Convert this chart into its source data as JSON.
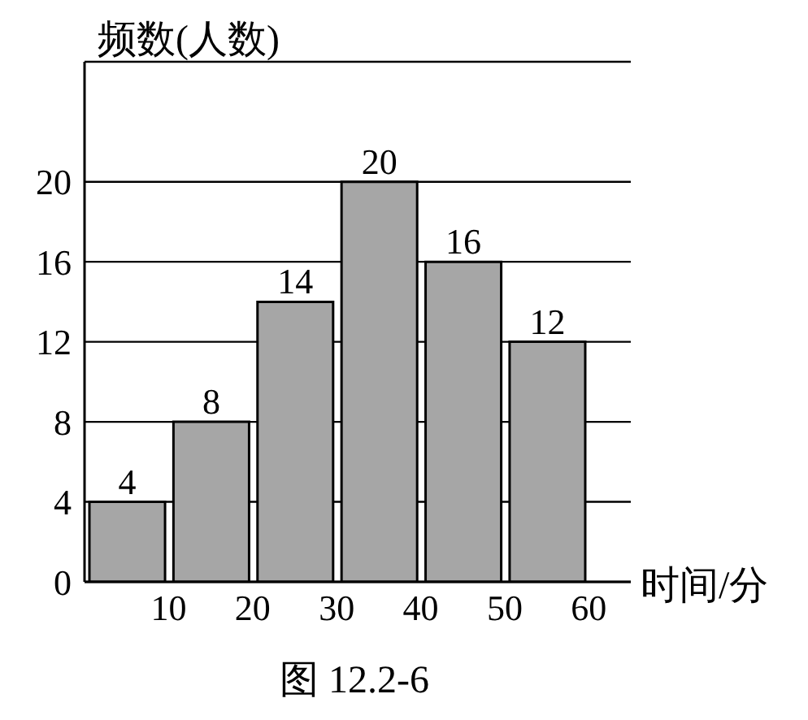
{
  "chart_data": {
    "type": "histogram",
    "ylabel": "频数(人数)",
    "xlabel": "时间/分",
    "annotations": [
      "图 12.2-6"
    ],
    "bins": [
      0,
      10,
      20,
      30,
      40,
      50,
      60
    ],
    "values": [
      4,
      8,
      14,
      20,
      16,
      12
    ],
    "color": "#a6a6a6",
    "xlim": [
      0,
      65
    ],
    "xticks": [
      10,
      20,
      30,
      40,
      50,
      60
    ],
    "ylim": [
      0,
      26
    ],
    "yticks": [
      0,
      4,
      8,
      12,
      16,
      20
    ],
    "grid": "y",
    "data_labels": true
  }
}
